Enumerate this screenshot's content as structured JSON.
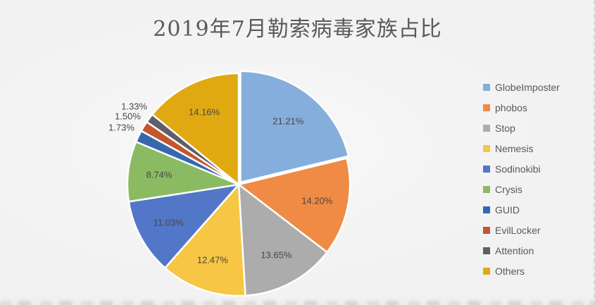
{
  "chart_data": {
    "type": "pie",
    "title": "2019年7月勒索病毒家族占比",
    "categories": [
      "GlobeImposter",
      "phobos",
      "Stop",
      "Nemesis",
      "Sodinokibi",
      "Crysis",
      "GUID",
      "EvilLocker",
      "Attention",
      "Others"
    ],
    "values": [
      21.21,
      14.2,
      13.65,
      12.47,
      11.03,
      8.74,
      1.73,
      1.5,
      1.33,
      14.16
    ],
    "labels": [
      "21.21%",
      "14.20%",
      "13.65%",
      "12.47%",
      "11.03%",
      "8.74%",
      "1.73%",
      "1.50%",
      "1.33%",
      "14.16%"
    ],
    "colors": [
      "#85AEDD",
      "#EF8B45",
      "#ACACAC",
      "#F6C644",
      "#5377C8",
      "#8ABB62",
      "#3668B0",
      "#C3562C",
      "#615D67",
      "#E0A912"
    ],
    "legend_position": "right",
    "start_angle_deg": 0,
    "direction": "clockwise",
    "background": "#F2F2F2",
    "title_color": "#5A5A5A"
  }
}
